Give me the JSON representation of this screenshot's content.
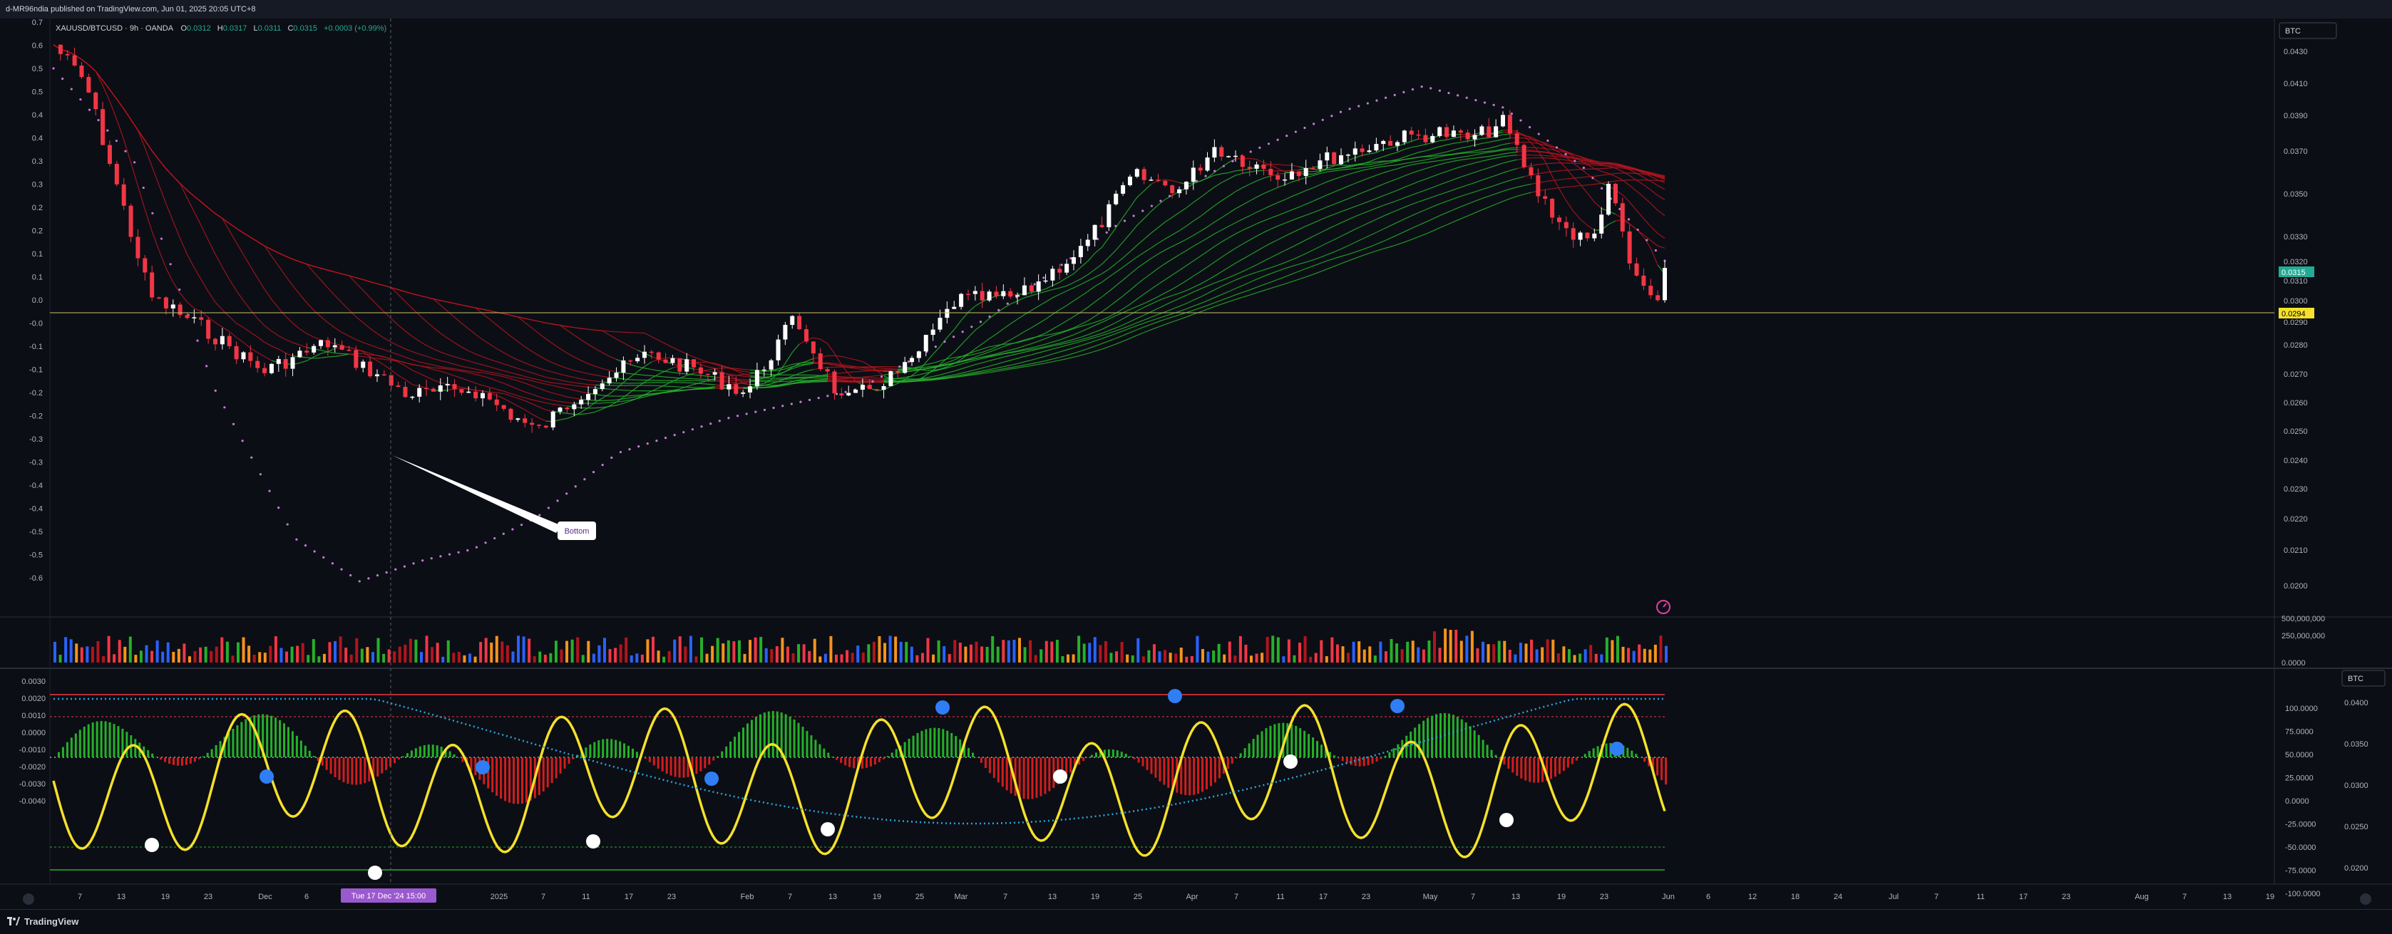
{
  "header": {
    "published": "d-MR96ndia published on TradingView.com, Jun 01, 2025 20:05 UTC+8"
  },
  "main_chart": {
    "legend": {
      "symbol": "XAUUSD/BTCUSD · 9h · OANDA",
      "open_label": "O",
      "open": "0.0312",
      "high_label": "H",
      "high": "0.0317",
      "low_label": "L",
      "low": "0.0311",
      "close_label": "C",
      "close": "0.0315",
      "change": "+0.0003 (+0.99%)"
    },
    "currency_badge": "BTC",
    "price_ticks": [
      "0.0430",
      "0.0410",
      "0.0390",
      "0.0370",
      "0.0350",
      "0.0330",
      "0.0320",
      "0.0310",
      "0.0300",
      "0.0290",
      "0.0280",
      "0.0270",
      "0.0260",
      "0.0250",
      "0.0240",
      "0.0230",
      "0.0220",
      "0.0210",
      "0.0200"
    ],
    "left_ticks": [
      "0.7",
      "0.6",
      "0.5",
      "0.5",
      "0.4",
      "0.4",
      "0.3",
      "0.3",
      "0.2",
      "0.2",
      "0.1",
      "0.1",
      "0.0",
      "-0.0",
      "-0.1",
      "-0.1",
      "-0.2",
      "-0.2",
      "-0.3",
      "-0.3",
      "-0.4",
      "-0.4",
      "-0.5",
      "-0.5",
      "-0.6"
    ],
    "price_label": "0.0315",
    "hline_label": "0.0294",
    "annotation": "Bottom"
  },
  "volume_pane": {
    "ticks": [
      "500,000,000",
      "250,000,000",
      "0.0000"
    ]
  },
  "oscillator": {
    "currency_badge": "BTC",
    "left_ticks": [
      "0.0030",
      "0.0020",
      "0.0010",
      "0.0000",
      "-0.0010",
      "-0.0020",
      "-0.0030",
      "-0.0040"
    ],
    "right_ticks": [
      "100.0000",
      "75.0000",
      "50.0000",
      "25.0000",
      "0.0000",
      "-25.0000",
      "-50.0000",
      "-75.0000",
      "-100.0000"
    ],
    "right_ticks2": [
      "0.0400",
      "0.0350",
      "0.0300",
      "0.0250",
      "0.0200"
    ]
  },
  "time_axis": {
    "ticks": [
      "7",
      "13",
      "19",
      "23",
      "Dec",
      "6",
      "2025",
      "7",
      "11",
      "17",
      "23",
      "Feb",
      "7",
      "13",
      "19",
      "25",
      "Mar",
      "7",
      "13",
      "19",
      "25",
      "Apr",
      "7",
      "11",
      "17",
      "23",
      "May",
      "7",
      "13",
      "19",
      "23",
      "Jun",
      "6",
      "12",
      "18",
      "24",
      "Jul",
      "7",
      "11",
      "17",
      "23",
      "Aug",
      "7",
      "13",
      "19"
    ],
    "cursor_label": "Tue 17 Dec '24   15:00"
  },
  "footer": {
    "brand": "TradingView"
  },
  "colors": {
    "background": "#0c0e15",
    "bull": "#ffffff",
    "bear": "#f23645",
    "ribbon_bear": "#b2151e",
    "ribbon_bull": "#25b02a",
    "dotted_ma": "#c67ad8",
    "osc_line": "#f5e12a",
    "osc_ma": "#2aa6d8"
  }
}
